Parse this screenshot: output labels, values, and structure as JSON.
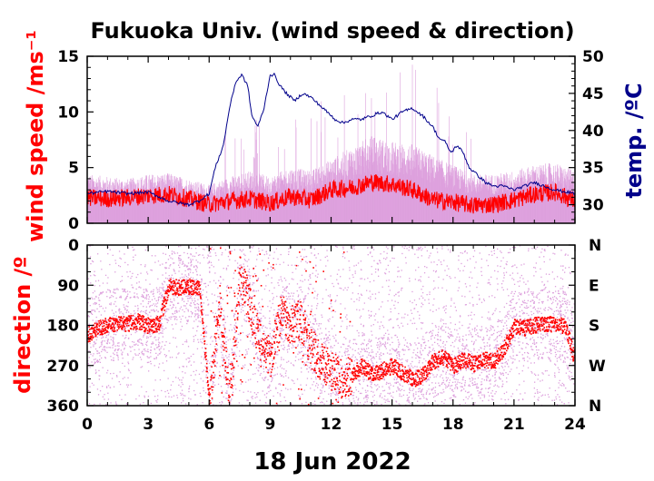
{
  "chart_data": [
    {
      "type": "line",
      "title": "Fukuoka Univ. (wind speed & direction)",
      "ylabel": "wind speed /ms⁻¹",
      "y2label": "temp. /ºC",
      "xlim": [
        0,
        24
      ],
      "ylim": [
        0,
        15
      ],
      "y2lim": [
        27.5,
        50
      ],
      "x_ticks": [
        "0",
        "3",
        "6",
        "9",
        "12",
        "15",
        "18",
        "21",
        "24"
      ],
      "y_ticks": [
        "0",
        "5",
        "10",
        "15"
      ],
      "y2_ticks": [
        "30",
        "35",
        "40",
        "45",
        "50"
      ],
      "colors": {
        "wind_mean": "#ff0000",
        "wind_gust": "#dda0dd",
        "temperature": "#00008b"
      },
      "series": [
        {
          "name": "",
          "axis": "right",
          "x": [
            0,
            1,
            2,
            3,
            4,
            5,
            5.5,
            6,
            6.3,
            6.7,
            7,
            7.3,
            7.6,
            7.9,
            8.1,
            8.4,
            8.7,
            9,
            9.2,
            9.5,
            9.8,
            10.2,
            10.6,
            11,
            11.4,
            11.8,
            12.2,
            12.6,
            13,
            13.5,
            14,
            14.5,
            15,
            15.5,
            16,
            16.5,
            17,
            17.3,
            17.6,
            17.9,
            18.2,
            18.5,
            18.8,
            19.2,
            19.6,
            20,
            20.5,
            21,
            21.5,
            22,
            23,
            24
          ],
          "values": [
            31.5,
            31.8,
            31.5,
            31.7,
            30.5,
            30,
            30.5,
            31.5,
            35,
            38,
            43,
            46.5,
            47.5,
            46,
            42,
            40.5,
            43,
            47.5,
            47.5,
            46,
            45,
            44,
            45,
            44.5,
            43.5,
            42.5,
            41.5,
            41,
            41.5,
            41.5,
            42,
            42.5,
            41.5,
            42.5,
            43,
            42,
            40.5,
            39,
            38.5,
            37,
            38,
            37,
            35,
            34,
            33,
            32.5,
            32.5,
            32,
            32.5,
            33,
            32,
            31.5
          ]
        },
        {
          "name": "",
          "axis": "left",
          "x": [
            0,
            1,
            2,
            3,
            4,
            5,
            6,
            7,
            8,
            9,
            10,
            11,
            12,
            13,
            14,
            15,
            16,
            17,
            18,
            19,
            20,
            21,
            22,
            23,
            24
          ],
          "values": [
            2.3,
            2.2,
            2.3,
            2.5,
            2.6,
            2.2,
            1.7,
            2.0,
            2.2,
            1.8,
            2.4,
            2.1,
            3.0,
            3.2,
            3.7,
            3.5,
            3.0,
            2.1,
            1.9,
            1.6,
            1.7,
            2.1,
            2.6,
            2.8,
            2.0
          ]
        },
        {
          "name": "",
          "axis": "left",
          "style": "gust-band",
          "x": [
            0,
            1,
            2,
            3,
            4,
            5,
            6,
            7,
            8,
            9,
            10,
            11,
            12,
            13,
            14,
            15,
            16,
            17,
            18,
            19,
            20,
            21,
            22,
            23,
            24
          ],
          "values": [
            4.2,
            4.0,
            3.8,
            4.2,
            4.3,
            3.8,
            3.3,
            4.0,
            4.5,
            4.0,
            4.8,
            4.5,
            5.5,
            6.5,
            7.5,
            7.0,
            6.8,
            5.8,
            5.0,
            4.2,
            4.2,
            4.5,
            5.0,
            5.2,
            4.5
          ]
        }
      ]
    },
    {
      "type": "scatter",
      "xlabel": "18 Jun 2022",
      "ylabel": "direction /º",
      "xlim": [
        0,
        24
      ],
      "ylim": [
        360,
        0
      ],
      "x_ticks": [
        "0",
        "3",
        "6",
        "9",
        "12",
        "15",
        "18",
        "21",
        "24"
      ],
      "y_ticks": [
        "0",
        "90",
        "180",
        "270",
        "360"
      ],
      "compass_labels": [
        "N",
        "E",
        "S",
        "W",
        "N"
      ],
      "colors": {
        "mean_direction": "#ff0000",
        "instantaneous_direction": "#dda0dd"
      },
      "series": [
        {
          "name": "",
          "x": [
            0,
            0.5,
            1,
            1.5,
            2,
            2.5,
            3,
            3.5,
            4,
            4.5,
            5,
            5.5,
            6,
            6.5,
            7,
            7.5,
            8,
            8.5,
            9,
            9.5,
            10,
            10.5,
            11,
            11.5,
            12,
            12.5,
            13,
            13.5,
            14,
            14.5,
            15,
            15.5,
            16,
            16.5,
            17,
            17.5,
            18,
            18.5,
            19,
            19.5,
            20,
            20.5,
            21,
            21.5,
            22,
            22.5,
            23,
            23.5,
            24
          ],
          "values": [
            200,
            185,
            178,
            176,
            175,
            170,
            180,
            175,
            90,
            95,
            92,
            95,
            350,
            130,
            340,
            60,
            140,
            220,
            250,
            150,
            180,
            170,
            230,
            260,
            280,
            300,
            290,
            270,
            290,
            280,
            270,
            285,
            300,
            290,
            260,
            250,
            270,
            255,
            265,
            255,
            260,
            230,
            180,
            185,
            178,
            176,
            175,
            180,
            260
          ]
        }
      ]
    }
  ]
}
